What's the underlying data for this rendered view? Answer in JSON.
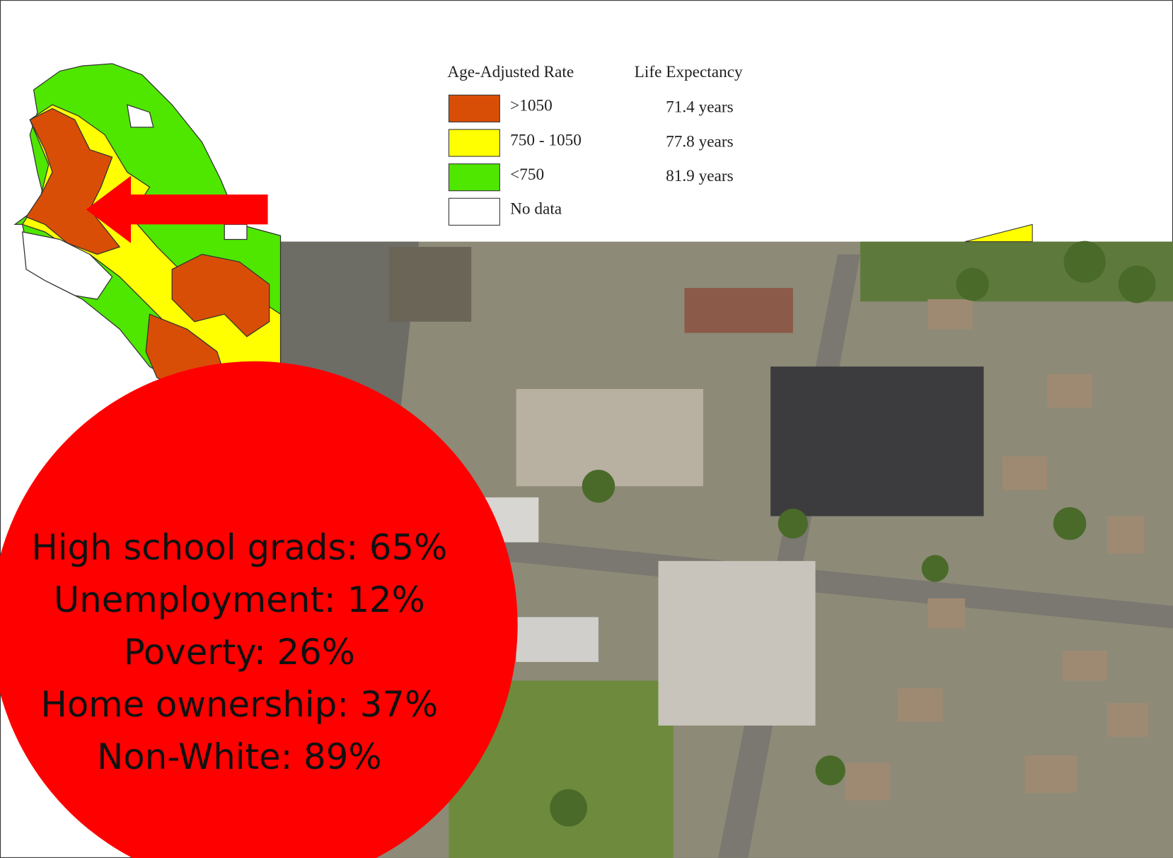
{
  "legend": {
    "heading_rate": "Age-Adjusted Rate",
    "heading_life": "Life Expectancy",
    "rows": [
      {
        "range": ">1050",
        "life_expectancy": "71.4 years",
        "color": "#d94e06"
      },
      {
        "range": "750 - 1050",
        "life_expectancy": "77.8 years",
        "color": "#ffff00"
      },
      {
        "range": "<750",
        "life_expectancy": "81.9 years",
        "color": "#4fe600"
      },
      {
        "range": "No data",
        "life_expectancy": null,
        "color": "#ffffff"
      }
    ]
  },
  "stats": {
    "lines": [
      "High school grads: 65%",
      "Unemployment: 12%",
      "Poverty: 26%",
      "Home ownership: 37%",
      "Non-White: 89%"
    ]
  }
}
